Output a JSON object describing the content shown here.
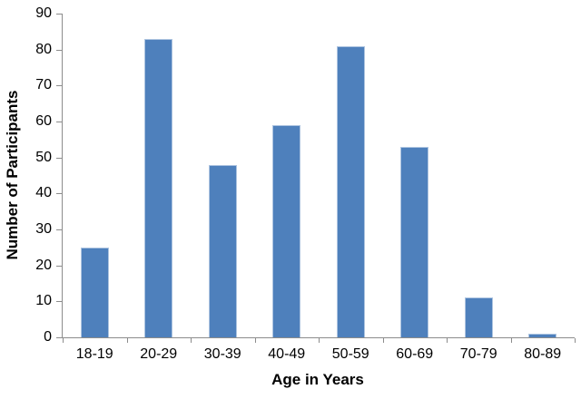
{
  "chart_data": {
    "type": "bar",
    "title": "",
    "xlabel": "Age in Years",
    "ylabel": "Number of Participants",
    "categories": [
      "18-19",
      "20-29",
      "30-39",
      "40-49",
      "50-59",
      "60-69",
      "70-79",
      "80-89"
    ],
    "values": [
      25,
      83,
      48,
      59,
      81,
      53,
      11,
      1
    ],
    "yticks": [
      0,
      10,
      20,
      30,
      40,
      50,
      60,
      70,
      80,
      90
    ],
    "ylim": [
      0,
      90
    ],
    "grid": false,
    "legend": "none",
    "bar_color": "#4e80bc",
    "bar_border_color": "#adc4e0",
    "axis_color": "#8c8c8c",
    "text_color": "#000000",
    "background_color": "#ffffff"
  }
}
